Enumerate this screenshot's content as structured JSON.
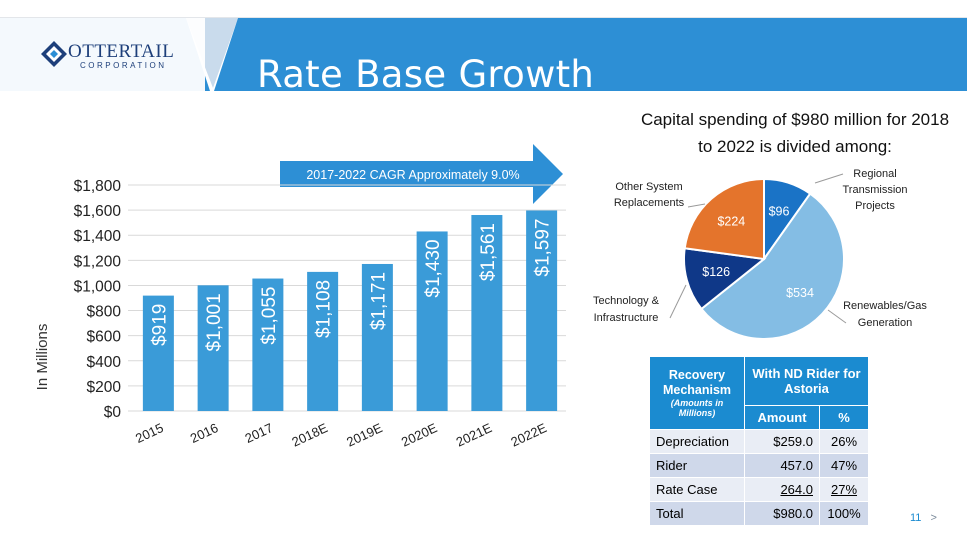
{
  "header": {
    "title": "Rate Base Growth",
    "logo_word": "OTTERTAIL",
    "logo_sub": "CORPORATION",
    "band_color": "#2d8fd5"
  },
  "chart_data": [
    {
      "type": "bar",
      "ylabel": "In Millions",
      "categories": [
        "2015",
        "2016",
        "2017",
        "2018E",
        "2019E",
        "2020E",
        "2021E",
        "2022E"
      ],
      "values": [
        919,
        1001,
        1055,
        1108,
        1171,
        1430,
        1561,
        1597
      ],
      "data_labels": [
        "$919",
        "$1,001",
        "$1,055",
        "$1,108",
        "$1,171",
        "$1,430",
        "$1,561",
        "$1,597"
      ],
      "ylim": [
        0,
        1800
      ],
      "yticks": [
        0,
        200,
        400,
        600,
        800,
        1000,
        1200,
        1400,
        1600,
        1800
      ],
      "ytick_labels": [
        "$0",
        "$200",
        "$400",
        "$600",
        "$800",
        "$1,000",
        "$1,200",
        "$1,400",
        "$1,600",
        "$1,800"
      ],
      "grid": true,
      "annotation": "2017-2022  CAGR Approximately 9.0%",
      "bar_color": "#3a9bd8"
    },
    {
      "type": "pie",
      "title": "Capital spending of $980 million for 2018 to 2022 is divided among:",
      "slices": [
        {
          "label": "Regional Transmission Projects",
          "value": 96,
          "value_label": "$96",
          "color": "#1a73c6"
        },
        {
          "label": "Renewables/Gas Generation",
          "value": 534,
          "value_label": "$534",
          "color": "#84bde4"
        },
        {
          "label": "Technology & Infrastructure",
          "value": 126,
          "value_label": "$126",
          "color": "#0f3888"
        },
        {
          "label": "Other System Replacements",
          "value": 224,
          "value_label": "$224",
          "color": "#e4742c"
        }
      ]
    }
  ],
  "table": {
    "head_col1": "Recovery Mechanism",
    "head_col1_sub": "(Amounts in Millions)",
    "head_group": "With ND Rider for Astoria",
    "head_amount": "Amount",
    "head_pct": "%",
    "rows": [
      {
        "label": "Depreciation",
        "amount": "$259.0",
        "pct": "26%"
      },
      {
        "label": "Rider",
        "amount": "457.0",
        "pct": "47%"
      },
      {
        "label": "Rate Case",
        "amount": "264.0",
        "pct": "27%"
      },
      {
        "label": "Total",
        "amount": "$980.0",
        "pct": "100%"
      }
    ]
  },
  "footer": {
    "page_number": "11",
    "next_glyph": ">"
  }
}
